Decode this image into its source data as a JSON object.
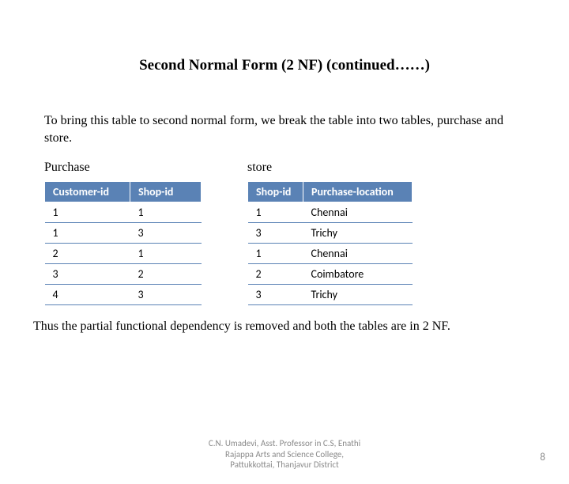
{
  "title": "Second Normal Form (2 NF) (continued……)",
  "intro": "To bring this table to second normal form, we break the table into two tables, purchase and store.",
  "purchase": {
    "label": "Purchase",
    "columns": [
      "Customer-id",
      "Shop-id"
    ],
    "rows": [
      [
        "1",
        "1"
      ],
      [
        "1",
        "3"
      ],
      [
        "2",
        "1"
      ],
      [
        "3",
        "2"
      ],
      [
        "4",
        "3"
      ]
    ]
  },
  "store": {
    "label": "store",
    "columns": [
      "Shop-id",
      "Purchase-location"
    ],
    "rows": [
      [
        "1",
        "Chennai"
      ],
      [
        "3",
        "Trichy"
      ],
      [
        "1",
        "Chennai"
      ],
      [
        "2",
        "Coimbatore"
      ],
      [
        "3",
        "Trichy"
      ]
    ]
  },
  "conclusion": "Thus the partial functional dependency is removed and both the tables are in 2 NF.",
  "footer": {
    "line1": "C.N. Umadevi, Asst. Professor in C.S, Enathi",
    "line2": "Rajappa Arts and Science College,",
    "line3": "Pattukkottai, Thanjavur District"
  },
  "page_number": "8",
  "colors": {
    "header_bg": "#5a82b5",
    "header_text": "#ffffff",
    "row_border": "#5a82b5",
    "footer_text": "#8a8a8a"
  }
}
